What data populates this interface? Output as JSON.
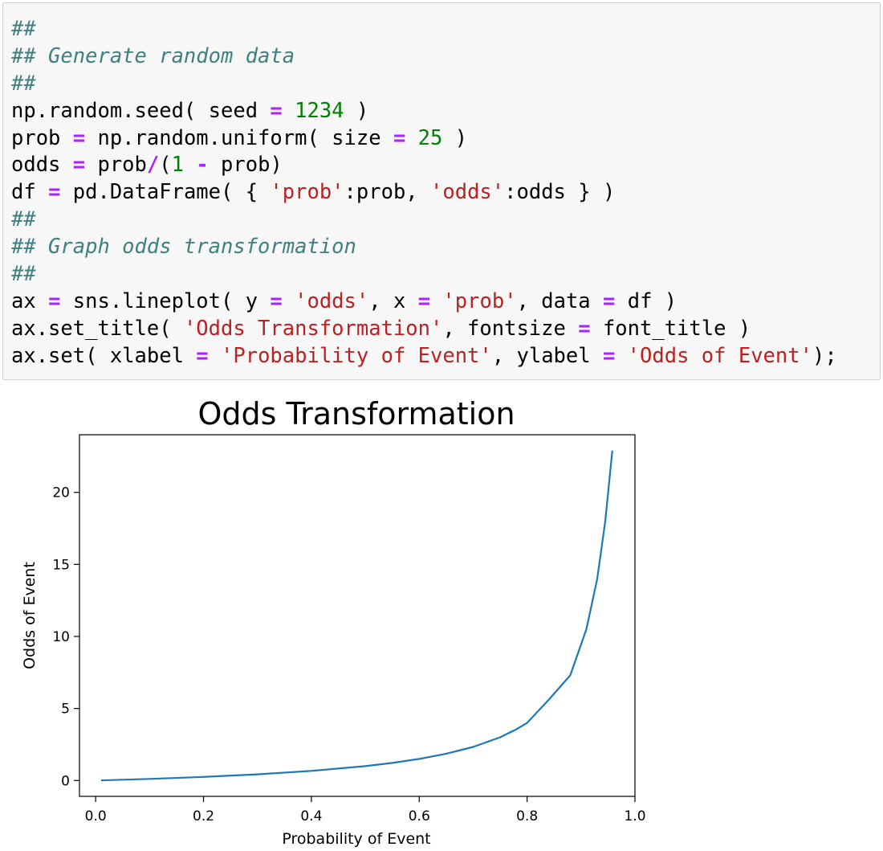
{
  "code_cell": {
    "lines": [
      [
        {
          "t": "##",
          "k": "cm"
        }
      ],
      [
        {
          "t": "## Generate random data",
          "k": "cm"
        }
      ],
      [
        {
          "t": "##",
          "k": "cm"
        }
      ],
      [
        {
          "t": "np.random.seed( seed ",
          "k": ""
        },
        {
          "t": "=",
          "k": "op"
        },
        {
          "t": " ",
          "k": ""
        },
        {
          "t": "1234",
          "k": "num"
        },
        {
          "t": " )",
          "k": ""
        }
      ],
      [
        {
          "t": "prob ",
          "k": ""
        },
        {
          "t": "=",
          "k": "op"
        },
        {
          "t": " np.random.uniform( size ",
          "k": ""
        },
        {
          "t": "=",
          "k": "op"
        },
        {
          "t": " ",
          "k": ""
        },
        {
          "t": "25",
          "k": "num"
        },
        {
          "t": " )",
          "k": ""
        }
      ],
      [
        {
          "t": "odds ",
          "k": ""
        },
        {
          "t": "=",
          "k": "op"
        },
        {
          "t": " prob",
          "k": ""
        },
        {
          "t": "/",
          "k": "op"
        },
        {
          "t": "(",
          "k": ""
        },
        {
          "t": "1",
          "k": "num"
        },
        {
          "t": " ",
          "k": ""
        },
        {
          "t": "-",
          "k": "op"
        },
        {
          "t": " prob)",
          "k": ""
        }
      ],
      [
        {
          "t": "df ",
          "k": ""
        },
        {
          "t": "=",
          "k": "op"
        },
        {
          "t": " pd.DataFrame( { ",
          "k": ""
        },
        {
          "t": "'prob'",
          "k": "str"
        },
        {
          "t": ":prob, ",
          "k": ""
        },
        {
          "t": "'odds'",
          "k": "str"
        },
        {
          "t": ":odds } )",
          "k": ""
        }
      ],
      [
        {
          "t": "##",
          "k": "cm"
        }
      ],
      [
        {
          "t": "## Graph odds transformation",
          "k": "cm"
        }
      ],
      [
        {
          "t": "##",
          "k": "cm"
        }
      ],
      [
        {
          "t": "ax ",
          "k": ""
        },
        {
          "t": "=",
          "k": "op"
        },
        {
          "t": " sns.lineplot( y ",
          "k": ""
        },
        {
          "t": "=",
          "k": "op"
        },
        {
          "t": " ",
          "k": ""
        },
        {
          "t": "'odds'",
          "k": "str"
        },
        {
          "t": ", x ",
          "k": ""
        },
        {
          "t": "=",
          "k": "op"
        },
        {
          "t": " ",
          "k": ""
        },
        {
          "t": "'prob'",
          "k": "str"
        },
        {
          "t": ", data ",
          "k": ""
        },
        {
          "t": "=",
          "k": "op"
        },
        {
          "t": " df )",
          "k": ""
        }
      ],
      [
        {
          "t": "ax.set_title( ",
          "k": ""
        },
        {
          "t": "'Odds Transformation'",
          "k": "str"
        },
        {
          "t": ", fontsize ",
          "k": ""
        },
        {
          "t": "=",
          "k": "op"
        },
        {
          "t": " font_title )",
          "k": ""
        }
      ],
      [
        {
          "t": "ax.set( xlabel ",
          "k": ""
        },
        {
          "t": "=",
          "k": "op"
        },
        {
          "t": " ",
          "k": ""
        },
        {
          "t": "'Probability of Event'",
          "k": "str"
        },
        {
          "t": ", ylabel ",
          "k": ""
        },
        {
          "t": "=",
          "k": "op"
        },
        {
          "t": " ",
          "k": ""
        },
        {
          "t": "'Odds of Event'",
          "k": "str"
        },
        {
          "t": ");",
          "k": ""
        }
      ]
    ]
  },
  "colors": {
    "comment": "#408080",
    "operator": "#aa22ff",
    "number": "#008000",
    "string": "#ba2121",
    "cell_background": "#f7f7f7",
    "line": "#1f77b4"
  },
  "chart_data": {
    "type": "line",
    "title": "Odds Transformation",
    "xlabel": "Probability of Event",
    "ylabel": "Odds of Event",
    "xlim": [
      -0.03,
      1.0
    ],
    "ylim": [
      -1.1,
      24.0
    ],
    "xticks": [
      0.0,
      0.2,
      0.4,
      0.6,
      0.8,
      1.0
    ],
    "xtick_labels": [
      "0.0",
      "0.2",
      "0.4",
      "0.6",
      "0.8",
      "1.0"
    ],
    "yticks": [
      0,
      5,
      10,
      15,
      20
    ],
    "ytick_labels": [
      "0",
      "5",
      "10",
      "15",
      "20"
    ],
    "grid": false,
    "series": [
      {
        "x": [
          0.01,
          0.1,
          0.2,
          0.3,
          0.4,
          0.5,
          0.55,
          0.6,
          0.65,
          0.7,
          0.75,
          0.78,
          0.8,
          0.84,
          0.88,
          0.91,
          0.93,
          0.945,
          0.958
        ],
        "y": [
          0.01,
          0.11,
          0.25,
          0.43,
          0.67,
          1.0,
          1.22,
          1.5,
          1.86,
          2.33,
          3.0,
          3.55,
          4.0,
          5.6,
          7.3,
          10.5,
          14.0,
          18.0,
          22.9
        ]
      }
    ]
  }
}
